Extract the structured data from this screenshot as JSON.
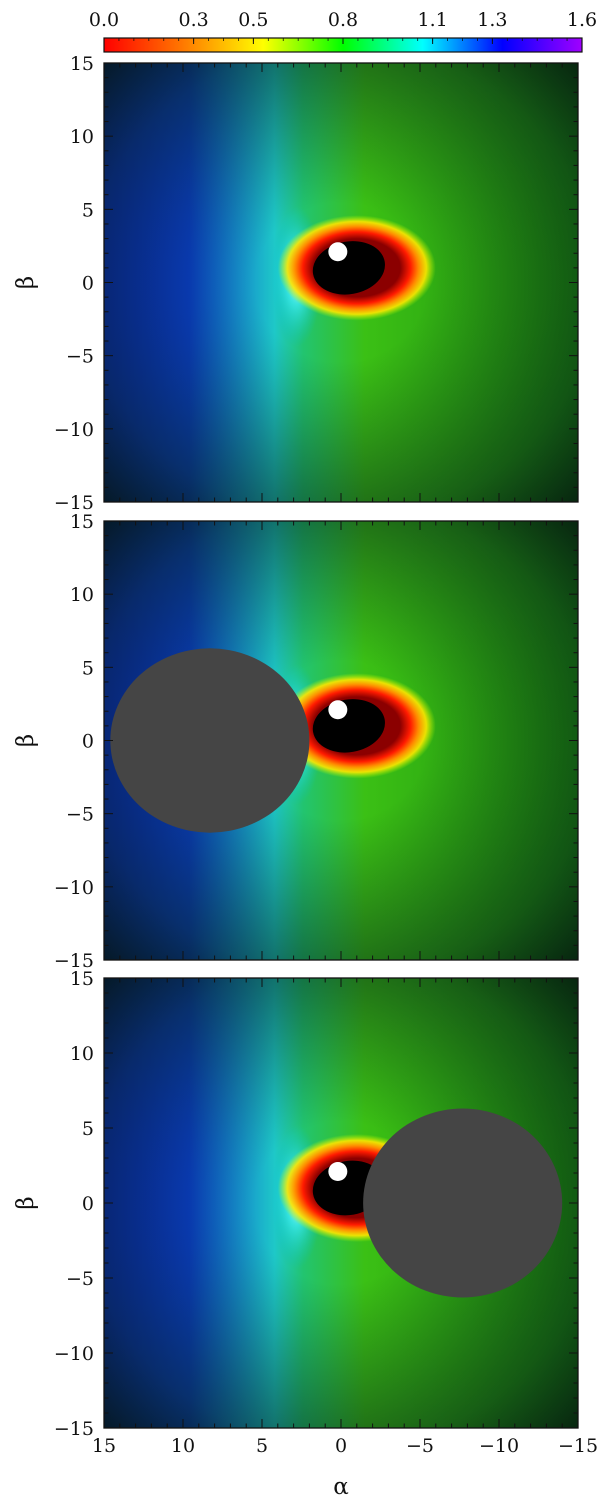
{
  "chart_data": [
    {
      "type": "colorbar",
      "range": [
        0.0,
        1.6
      ],
      "ticks": [
        0.0,
        0.3,
        0.5,
        0.8,
        1.1,
        1.3,
        1.6
      ],
      "tick_labels": [
        "0.0",
        "0.3",
        "0.5",
        "0.8",
        "1.1",
        "1.3",
        "1.6"
      ],
      "colormap": [
        "#ff0000",
        "#ff7a00",
        "#ffff00",
        "#00ff00",
        "#00ffff",
        "#0000ff",
        "#a000ff"
      ]
    },
    {
      "type": "heatmap",
      "panel": "top",
      "xlabel": "",
      "ylabel": "β",
      "xlim": [
        15,
        -15
      ],
      "ylim": [
        -15,
        15
      ],
      "x_ticks": [
        15,
        10,
        5,
        0,
        -5,
        -10,
        -15
      ],
      "y_ticks": [
        15,
        10,
        5,
        0,
        -5,
        -10,
        -15
      ],
      "y_tick_labels": [
        "15",
        "10",
        "5",
        "0",
        "−5",
        "−10",
        "−15"
      ],
      "shadow": {
        "center": [
          -0.5,
          1.0
        ],
        "semi_axes": [
          2.3,
          1.8
        ]
      },
      "marker": {
        "center": [
          0.2,
          2.1
        ],
        "radius": 0.6
      },
      "occulting_disk": null
    },
    {
      "type": "heatmap",
      "panel": "middle",
      "xlabel": "",
      "ylabel": "β",
      "xlim": [
        15,
        -15
      ],
      "ylim": [
        -15,
        15
      ],
      "x_ticks": [
        15,
        10,
        5,
        0,
        -5,
        -10,
        -15
      ],
      "y_ticks": [
        15,
        10,
        5,
        0,
        -5,
        -10,
        -15
      ],
      "y_tick_labels": [
        "15",
        "10",
        "5",
        "0",
        "−5",
        "−10",
        "−15"
      ],
      "shadow": {
        "center": [
          -0.5,
          1.0
        ],
        "semi_axes": [
          2.3,
          1.8
        ]
      },
      "marker": {
        "center": [
          0.2,
          2.1
        ],
        "radius": 0.6
      },
      "occulting_disk": {
        "center": [
          8.3,
          0.0
        ],
        "radius": 6.3
      }
    },
    {
      "type": "heatmap",
      "panel": "bottom",
      "xlabel": "α",
      "ylabel": "β",
      "xlim": [
        15,
        -15
      ],
      "ylim": [
        -15,
        15
      ],
      "x_ticks": [
        15,
        10,
        5,
        0,
        -5,
        -10,
        -15
      ],
      "x_tick_labels": [
        "15",
        "10",
        "5",
        "0",
        "−5",
        "−10",
        "−15"
      ],
      "y_ticks": [
        15,
        10,
        5,
        0,
        -5,
        -10,
        -15
      ],
      "y_tick_labels": [
        "15",
        "10",
        "5",
        "0",
        "−5",
        "−10",
        "−15"
      ],
      "shadow": {
        "center": [
          -0.5,
          1.0
        ],
        "semi_axes": [
          2.3,
          1.8
        ]
      },
      "marker": {
        "center": [
          0.2,
          2.1
        ],
        "radius": 0.6
      },
      "occulting_disk": {
        "center": [
          -7.7,
          0.0
        ],
        "radius": 6.3
      }
    }
  ],
  "colors": {
    "background_far": "#0b2a1e",
    "blue_side": "#0a1fd6",
    "green_side": "#1f8a0c",
    "shadow": "#000000",
    "marker": "#ffffff",
    "disk": "#454545"
  }
}
